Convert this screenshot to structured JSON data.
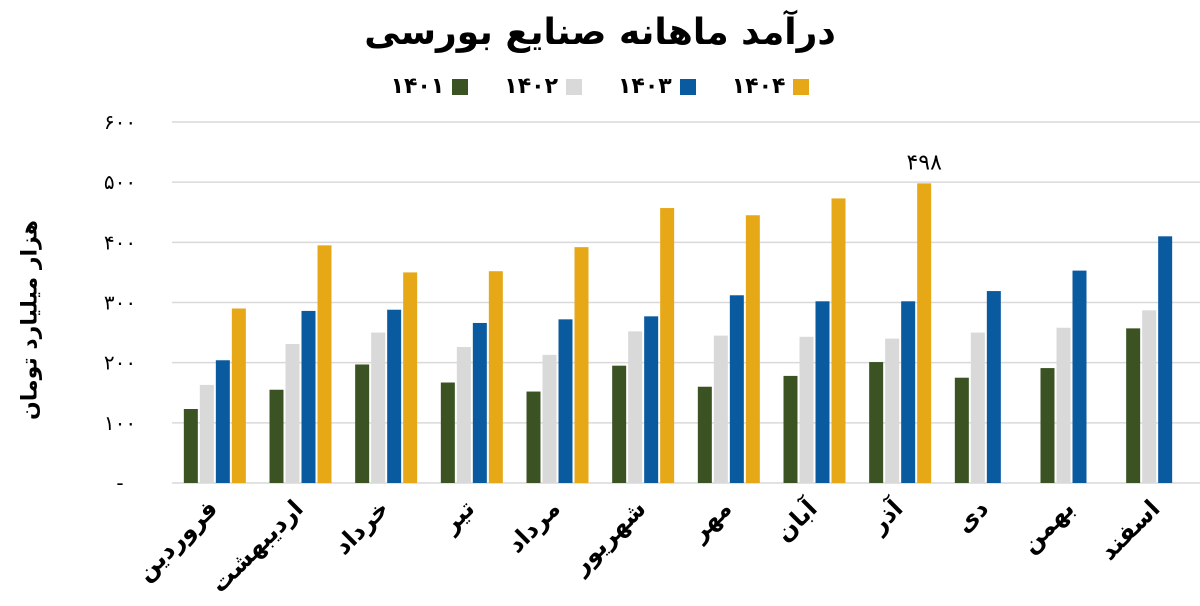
{
  "chart_data": {
    "type": "bar",
    "title": "درآمد ماهانه صنایع بورسی",
    "ylabel": "هزار میلیارد تومان",
    "xlabel": "",
    "ylim": [
      0,
      600
    ],
    "yticks": [
      0,
      100,
      200,
      300,
      400,
      500,
      600
    ],
    "ytick_labels": [
      "-",
      "۱۰۰",
      "۲۰۰",
      "۳۰۰",
      "۴۰۰",
      "۵۰۰",
      "۶۰۰"
    ],
    "grid": true,
    "legend_position": "top",
    "categories": [
      "فروردین",
      "اردیبهشت",
      "خرداد",
      "تیر",
      "مرداد",
      "شهریور",
      "مهر",
      "آبان",
      "آذر",
      "دی",
      "بهمن",
      "اسفند"
    ],
    "series": [
      {
        "name": "۱۴۰۱",
        "color": "#3b5323",
        "values": [
          123,
          155,
          197,
          167,
          152,
          195,
          160,
          178,
          201,
          175,
          191,
          257
        ]
      },
      {
        "name": "۱۴۰۲",
        "color": "#d9d9d9",
        "values": [
          163,
          231,
          250,
          226,
          213,
          252,
          245,
          243,
          240,
          250,
          258,
          287
        ]
      },
      {
        "name": "۱۴۰۳",
        "color": "#0a5aa0",
        "values": [
          204,
          286,
          288,
          266,
          272,
          277,
          312,
          302,
          302,
          319,
          353,
          410
        ]
      },
      {
        "name": "۱۴۰۴",
        "color": "#e6a817",
        "values": [
          290,
          395,
          350,
          352,
          392,
          457,
          445,
          473,
          498,
          null,
          null,
          null
        ]
      }
    ],
    "annotations": [
      {
        "text": "۴۹۸",
        "series": "۱۴۰۴",
        "category": "آذر"
      }
    ]
  }
}
